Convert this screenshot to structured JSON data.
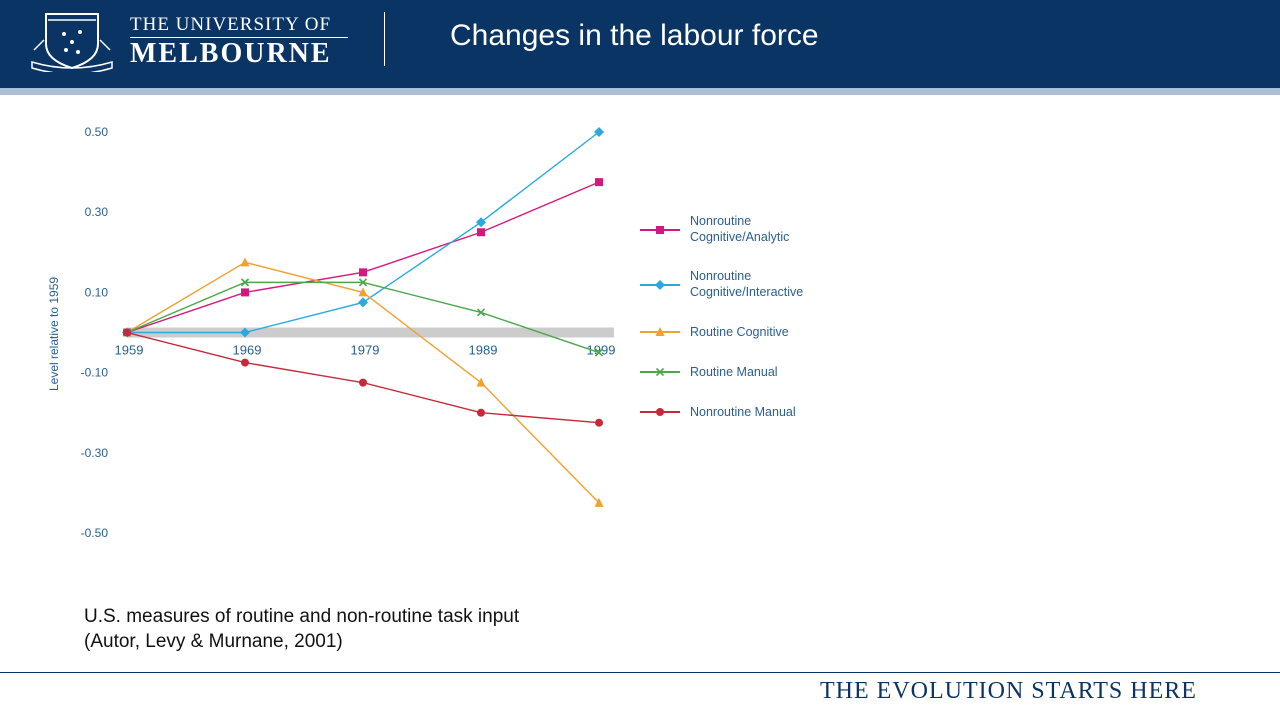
{
  "header": {
    "logo_line1": "THE UNIVERSITY OF",
    "logo_line2": "MELBOURNE",
    "title": "Changes in the labour force"
  },
  "colors": {
    "header_bg": "#0a3464",
    "accent_bar": "#a9bfd5",
    "axis_text": "#2a5f90"
  },
  "chart_data": {
    "type": "line",
    "ylabel": "Level relative to 1959",
    "ylim": [
      -0.5,
      0.5
    ],
    "y_ticks": [
      "0.50",
      "0.30",
      "0.10",
      "-0.10",
      "-0.30",
      "-0.50"
    ],
    "x": [
      "1959",
      "1969",
      "1979",
      "1989",
      "1999"
    ],
    "legend_position": "right",
    "series": [
      {
        "name": "Nonroutine Cognitive/Analytic",
        "marker": "square",
        "color": "#d6187e",
        "values": [
          0,
          0.1,
          0.15,
          0.25,
          0.375
        ]
      },
      {
        "name": "Nonroutine Cognitive/Interactive",
        "marker": "diamond",
        "color": "#2aa9df",
        "values": [
          0,
          0,
          0.075,
          0.275,
          0.5
        ]
      },
      {
        "name": "Routine Cognitive",
        "marker": "triangle",
        "color": "#f0a130",
        "values": [
          0,
          0.175,
          0.1,
          -0.125,
          -0.425
        ]
      },
      {
        "name": "Routine Manual",
        "marker": "x",
        "color": "#4aa84a",
        "values": [
          0,
          0.125,
          0.125,
          0.05,
          -0.05
        ]
      },
      {
        "name": "Nonroutine Manual",
        "marker": "circle",
        "color": "#c62a3a",
        "values": [
          0,
          -0.075,
          -0.125,
          -0.2,
          -0.225
        ]
      }
    ]
  },
  "caption": {
    "line1": "U.S. measures of routine and non-routine task input",
    "line2": "(Autor, Levy & Murnane, 2001)"
  },
  "footer": {
    "tagline": "THE EVOLUTION STARTS HERE"
  }
}
